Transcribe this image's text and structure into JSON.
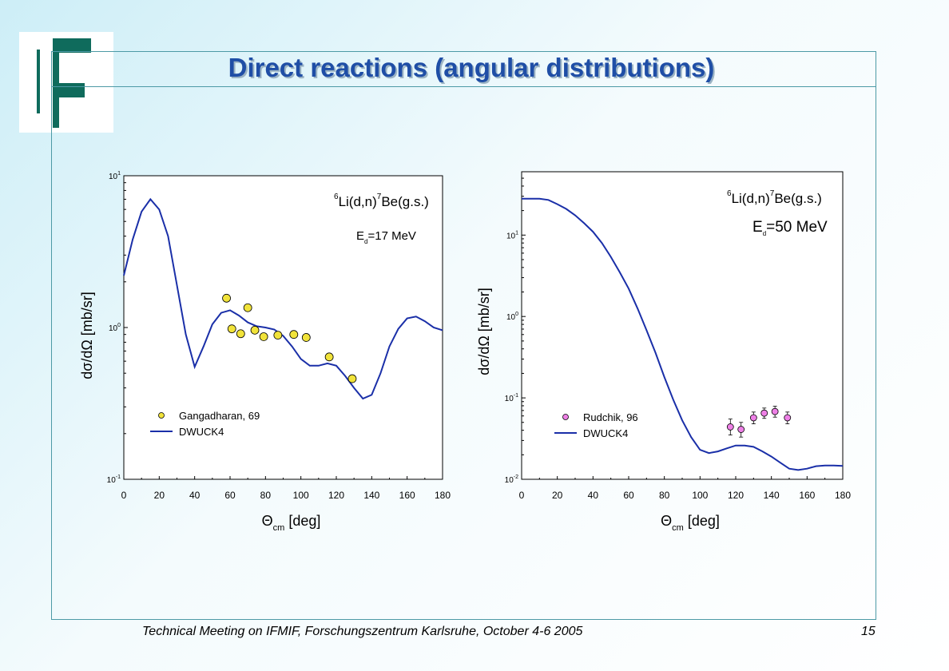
{
  "slide": {
    "title": "Direct reactions (angular distributions)",
    "footer": "Technical Meeting on IFMIF, Forschungszentrum Karlsruhe, October 4-6 2005",
    "page_number": "15",
    "colors": {
      "title": "#1f4ea6",
      "frame": "#4d9aa6",
      "logo": "#0f6b5c",
      "curve": "#1a2fa8"
    }
  },
  "chart_data": [
    {
      "type": "line",
      "reaction": {
        "mass_target": "6",
        "target": "Li",
        "proj": "(d,n)",
        "mass_product": "7",
        "product": "Be",
        "state": "(g.s.)"
      },
      "energy": {
        "symbol": "E",
        "sub": "d",
        "value": "=17 MeV"
      },
      "xlabel": {
        "symbol": "Θ",
        "sub": "cm",
        "unit": " [deg]"
      },
      "ylabel": "dσ/dΩ [mb/sr]",
      "x_ticks": [
        "0",
        "20",
        "40",
        "60",
        "80",
        "100",
        "120",
        "140",
        "160",
        "180"
      ],
      "y_tick_labels": [
        {
          "value": 10,
          "base": "10",
          "exp": "1"
        },
        {
          "value": 1,
          "base": "10",
          "exp": "0"
        },
        {
          "value": 0.1,
          "base": "10",
          "exp": "-1"
        }
      ],
      "xlim": [
        0,
        180
      ],
      "ylim": [
        0.1,
        10
      ],
      "y_scale": "log",
      "legend": [
        {
          "kind": "points",
          "label": "Gangadharan, 69"
        },
        {
          "kind": "line",
          "label": "DWUCK4"
        }
      ],
      "series": [
        {
          "kind": "line",
          "x": [
            0,
            5,
            10,
            15,
            20,
            25,
            30,
            35,
            40,
            45,
            50,
            55,
            60,
            65,
            70,
            75,
            80,
            85,
            90,
            95,
            100,
            105,
            110,
            115,
            120,
            125,
            130,
            135,
            140,
            145,
            150,
            155,
            160,
            165,
            170,
            175,
            180
          ],
          "y": [
            2.2,
            3.8,
            5.8,
            7.0,
            6.0,
            4.0,
            1.9,
            0.9,
            0.55,
            0.75,
            1.05,
            1.25,
            1.3,
            1.2,
            1.08,
            1.02,
            1.0,
            0.97,
            0.88,
            0.75,
            0.62,
            0.56,
            0.56,
            0.58,
            0.56,
            0.48,
            0.4,
            0.34,
            0.36,
            0.5,
            0.75,
            0.98,
            1.15,
            1.18,
            1.1,
            1.0,
            0.96
          ]
        },
        {
          "kind": "points",
          "x": [
            58,
            61,
            66,
            70,
            74,
            79,
            87,
            96,
            103,
            116,
            129
          ],
          "y": [
            1.56,
            0.98,
            0.91,
            1.35,
            0.96,
            0.87,
            0.89,
            0.9,
            0.86,
            0.64,
            0.46
          ]
        }
      ]
    },
    {
      "type": "line",
      "reaction": {
        "mass_target": "6",
        "target": "Li",
        "proj": "(d,n)",
        "mass_product": "7",
        "product": "Be",
        "state": "(g.s.)"
      },
      "energy": {
        "symbol": "E",
        "sub": "d",
        "value": "=50 MeV"
      },
      "xlabel": {
        "symbol": "Θ",
        "sub": "cm",
        "unit": " [deg]"
      },
      "ylabel": "dσ/dΩ [mb/sr]",
      "x_ticks": [
        "0",
        "20",
        "40",
        "60",
        "80",
        "100",
        "120",
        "140",
        "160",
        "180"
      ],
      "y_tick_labels": [
        {
          "value": 10,
          "base": "10",
          "exp": "1"
        },
        {
          "value": 1,
          "base": "10",
          "exp": "0"
        },
        {
          "value": 0.1,
          "base": "10",
          "exp": "-1"
        },
        {
          "value": 0.01,
          "base": "10",
          "exp": "-2"
        }
      ],
      "xlim": [
        0,
        180
      ],
      "ylim": [
        0.01,
        60
      ],
      "y_scale": "log",
      "legend": [
        {
          "kind": "points",
          "label": "Rudchik, 96"
        },
        {
          "kind": "line",
          "label": "DWUCK4"
        }
      ],
      "series": [
        {
          "kind": "line",
          "x": [
            0,
            5,
            10,
            15,
            20,
            25,
            30,
            35,
            40,
            45,
            50,
            55,
            60,
            65,
            70,
            75,
            80,
            85,
            90,
            95,
            100,
            105,
            110,
            115,
            120,
            125,
            130,
            135,
            140,
            145,
            150,
            155,
            160,
            165,
            170,
            175,
            180
          ],
          "y": [
            28,
            28,
            28,
            27,
            24,
            21,
            17.5,
            14,
            11,
            8,
            5.4,
            3.5,
            2.2,
            1.25,
            0.68,
            0.36,
            0.18,
            0.095,
            0.053,
            0.033,
            0.023,
            0.021,
            0.022,
            0.024,
            0.026,
            0.026,
            0.025,
            0.022,
            0.019,
            0.016,
            0.0135,
            0.013,
            0.0135,
            0.0145,
            0.0148,
            0.0148,
            0.0146
          ]
        },
        {
          "kind": "points",
          "x": [
            117,
            123,
            130,
            136,
            142,
            149
          ],
          "y": [
            0.044,
            0.041,
            0.057,
            0.065,
            0.068,
            0.057
          ],
          "err_up": [
            0.011,
            0.009,
            0.01,
            0.01,
            0.011,
            0.01
          ],
          "err_down": [
            0.009,
            0.008,
            0.009,
            0.009,
            0.01,
            0.009
          ]
        }
      ]
    }
  ]
}
